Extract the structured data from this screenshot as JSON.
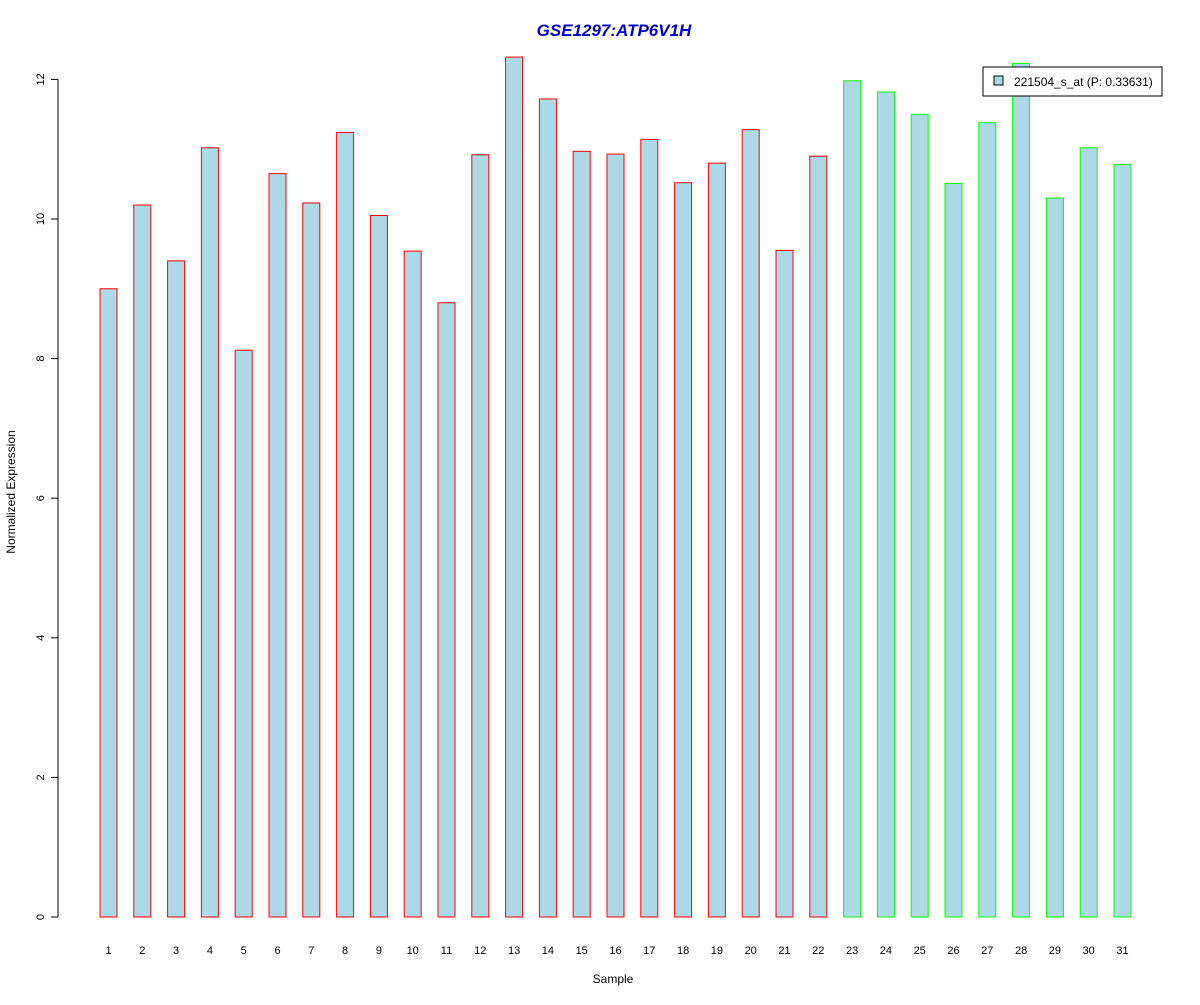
{
  "chart_data": {
    "type": "bar",
    "title": "GSE1297:ATP6V1H",
    "xlabel": "Sample",
    "ylabel": "Normalized Expression",
    "ylim": [
      0,
      12.5
    ],
    "yticks": [
      0,
      2,
      4,
      6,
      8,
      10,
      12
    ],
    "grid": false,
    "legend_position": "top-right",
    "categories": [
      "1",
      "2",
      "3",
      "4",
      "5",
      "6",
      "7",
      "8",
      "9",
      "10",
      "11",
      "12",
      "13",
      "14",
      "15",
      "16",
      "17",
      "18",
      "19",
      "20",
      "21",
      "22",
      "23",
      "24",
      "25",
      "26",
      "27",
      "28",
      "29",
      "30",
      "31"
    ],
    "series": [
      {
        "name": "221504_s_at (P: 0.33631)",
        "values": [
          9.0,
          10.2,
          9.4,
          11.02,
          8.12,
          10.65,
          10.23,
          11.24,
          10.05,
          9.54,
          8.8,
          10.92,
          12.32,
          11.72,
          10.97,
          10.93,
          11.14,
          10.52,
          10.8,
          11.28,
          9.55,
          10.9,
          11.98,
          11.82,
          11.5,
          10.51,
          11.38,
          12.23,
          10.3,
          11.02,
          10.78
        ]
      }
    ],
    "groups": [
      {
        "samples": [
          1,
          22
        ],
        "color": "#ff0000"
      },
      {
        "samples": [
          23,
          31
        ],
        "color": "#00ff00"
      }
    ],
    "colors": {
      "title": "#0000cc",
      "bar_fill": "#add8e6",
      "axis": "#000000"
    }
  }
}
